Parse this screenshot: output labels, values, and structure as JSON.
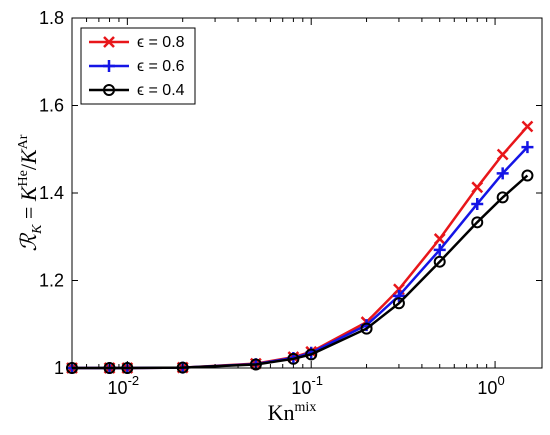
{
  "chart_data": {
    "type": "line",
    "xscale": "log",
    "xlim": [
      0.005,
      1.8
    ],
    "ylim": [
      1.0,
      1.8
    ],
    "grid": false,
    "legend_position": "top-left",
    "xlabel": "Kn",
    "xlabel_sup": "mix",
    "ylabel_parts": {
      "lhs": "ℛ",
      "lhs_sub": "K",
      "eq": " = ",
      "k1": "K",
      "k1_sup": "He",
      "slash": "/",
      "k2": "K",
      "k2_sup": "Ar"
    },
    "x": [
      0.005,
      0.008,
      0.01,
      0.02,
      0.05,
      0.08,
      0.1,
      0.2,
      0.3,
      0.5,
      0.8,
      1.1,
      1.5
    ],
    "y_ticks": [
      1,
      1.2,
      1.4,
      1.6,
      1.8
    ],
    "y_tick_labels": [
      "1",
      "1.2",
      "1.4",
      "1.6",
      "1.8"
    ],
    "x_tick_values": [
      0.01,
      0.1,
      1
    ],
    "x_tick_labels": [
      {
        "base": "10",
        "exp": "-2"
      },
      {
        "base": "10",
        "exp": "-1"
      },
      {
        "base": "10",
        "exp": "0"
      }
    ],
    "series": [
      {
        "name": "ϵ = 0.8",
        "color": "#e8161a",
        "marker": "x",
        "values": [
          1.0,
          1.0,
          1.0,
          1.001,
          1.01,
          1.025,
          1.037,
          1.105,
          1.18,
          1.295,
          1.413,
          1.488,
          1.552
        ]
      },
      {
        "name": "ϵ = 0.6",
        "color": "#1515e6",
        "marker": "plus",
        "values": [
          1.0,
          1.0,
          1.0,
          1.001,
          1.009,
          1.023,
          1.035,
          1.098,
          1.165,
          1.27,
          1.375,
          1.445,
          1.505
        ]
      },
      {
        "name": "ϵ = 0.4",
        "color": "#000000",
        "marker": "circle",
        "values": [
          1.0,
          1.0,
          1.0,
          1.001,
          1.008,
          1.021,
          1.031,
          1.09,
          1.148,
          1.243,
          1.333,
          1.39,
          1.44
        ]
      }
    ]
  }
}
